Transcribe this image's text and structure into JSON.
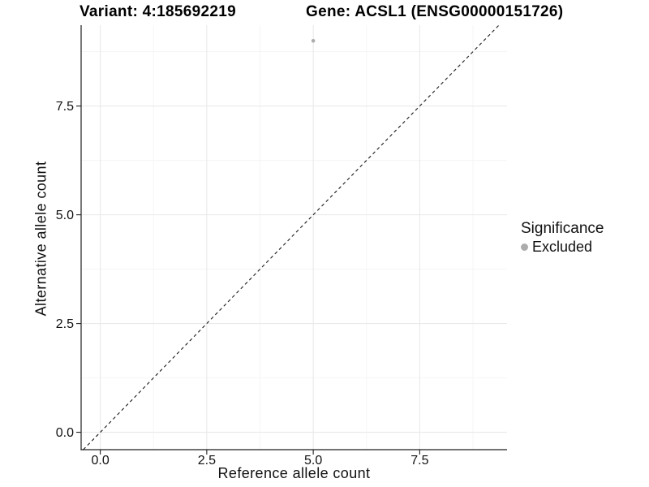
{
  "titles": {
    "variant": "Variant: 4:185692219",
    "gene": "Gene: ACSL1 (ENSG00000151726)"
  },
  "legend": {
    "title": "Significance",
    "items": [
      {
        "label": "Excluded",
        "color": "#acacac"
      }
    ]
  },
  "chart_data": {
    "type": "scatter",
    "title_left": "Variant: 4:185692219",
    "title_right": "Gene: ACSL1 (ENSG00000151726)",
    "xlabel": "Reference allele count",
    "ylabel": "Alternative allele count",
    "xlim": [
      -0.45,
      9.55
    ],
    "ylim": [
      -0.4,
      9.36
    ],
    "x_major_ticks": [
      0,
      2.5,
      5,
      7.5
    ],
    "y_major_ticks": [
      0,
      2.5,
      5,
      7.5
    ],
    "x_minor_ticks": [
      1.25,
      3.75,
      6.25,
      8.75
    ],
    "y_minor_ticks": [
      1.25,
      3.75,
      6.25,
      8.75
    ],
    "tick_label_format": "one_decimal",
    "grid": true,
    "legend_position": "right",
    "legend_title": "Significance",
    "series": [
      {
        "name": "Excluded",
        "color": "#acacac",
        "points": [
          {
            "x": 5,
            "y": 9
          }
        ]
      }
    ],
    "reference_line": {
      "slope": 1,
      "intercept": 0,
      "style": "dashed",
      "color": "#1a1a1a"
    }
  },
  "colors": {
    "background": "#ffffff",
    "grid_major": "#e9e9e9",
    "grid_minor": "#f4f4f4",
    "axis": "#1f1f1f",
    "text": "#111111"
  }
}
